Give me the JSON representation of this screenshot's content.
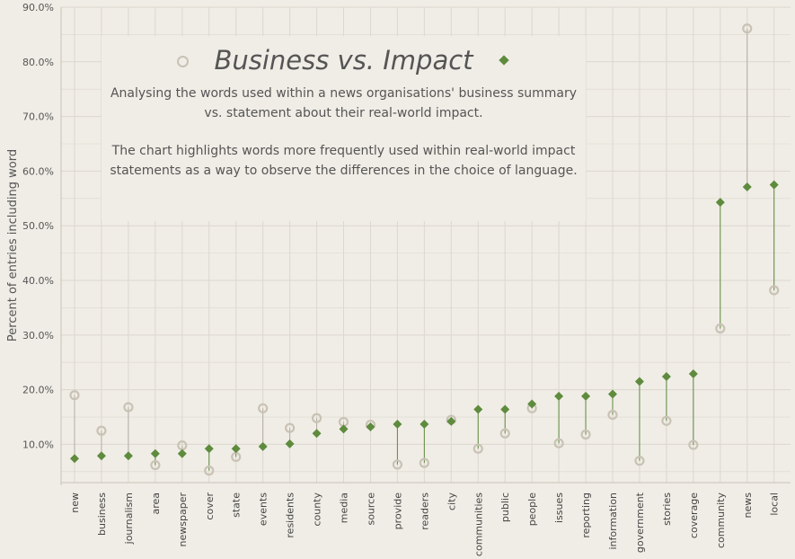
{
  "chart_data": {
    "type": "scatter",
    "title": "Business vs. Impact",
    "description": [
      "Analysing the words used within a news organisations' business summary vs. statement about their real-world impact.",
      "The chart highlights words more frequently used within real-world impact statements as a way to observe the differences in the choice of language."
    ],
    "ylabel": "Percent of entries including word",
    "ylim": [
      3,
      90
    ],
    "yticks": [
      "10.0%",
      "20.0%",
      "30.0%",
      "40.0%",
      "50.0%",
      "60.0%",
      "70.0%",
      "80.0%",
      "90.0%"
    ],
    "ytick_values": [
      10,
      20,
      30,
      40,
      50,
      60,
      70,
      80,
      90
    ],
    "grid": true,
    "categories": [
      "new",
      "business",
      "journalism",
      "area",
      "newspaper",
      "cover",
      "state",
      "events",
      "residents",
      "county",
      "media",
      "source",
      "provide",
      "readers",
      "city",
      "communities",
      "public",
      "people",
      "issues",
      "reporting",
      "information",
      "government",
      "stories",
      "coverage",
      "community",
      "news",
      "local"
    ],
    "series": [
      {
        "name": "Business",
        "marker": "diamond",
        "color": "#5e8b3d",
        "values": [
          7.4,
          7.9,
          7.9,
          8.3,
          8.3,
          9.2,
          9.2,
          9.6,
          10.1,
          12.0,
          12.8,
          13.2,
          13.7,
          13.7,
          14.2,
          16.4,
          16.4,
          17.4,
          18.8,
          18.8,
          19.2,
          21.5,
          22.4,
          22.9,
          54.3,
          57.1,
          57.5
        ]
      },
      {
        "name": "Impact",
        "marker": "ring",
        "color": "#c9c2b5",
        "values": [
          19.0,
          12.5,
          16.8,
          6.2,
          9.8,
          5.2,
          7.7,
          16.6,
          13.0,
          14.8,
          14.1,
          13.6,
          6.3,
          6.6,
          14.5,
          9.2,
          12.0,
          16.6,
          10.2,
          11.8,
          15.4,
          7.0,
          14.3,
          9.9,
          31.2,
          86.1,
          38.2
        ]
      }
    ],
    "colors": {
      "background": "#f0ede6",
      "grid": "#dcd7cf",
      "up_line": "#5e8b3d",
      "down_line": "#b3ada2"
    }
  }
}
